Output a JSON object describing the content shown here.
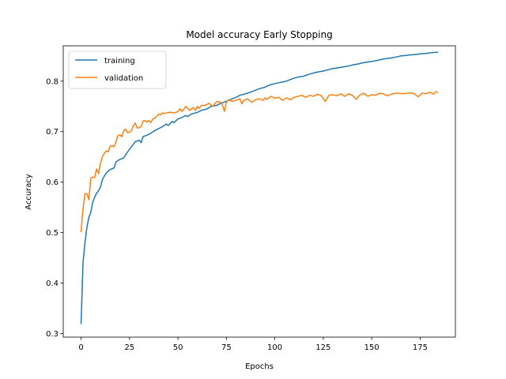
{
  "chart_data": {
    "type": "line",
    "title": "Model accuracy Early Stopping",
    "xlabel": "Epochs",
    "ylabel": "Accuracy",
    "xlim": [
      -9.2,
      193.2
    ],
    "ylim": [
      0.293,
      0.87
    ],
    "xticks": [
      0,
      25,
      50,
      75,
      100,
      125,
      150,
      175
    ],
    "yticks": [
      0.3,
      0.4,
      0.5,
      0.6,
      0.7,
      0.8
    ],
    "grid": false,
    "legend_position": "upper left",
    "series": [
      {
        "name": "training",
        "color": "#1f77b4",
        "points": [
          [
            0,
            0.32
          ],
          [
            1,
            0.44
          ],
          [
            2,
            0.48
          ],
          [
            3,
            0.51
          ],
          [
            4,
            0.53
          ],
          [
            5,
            0.54
          ],
          [
            6,
            0.56
          ],
          [
            7,
            0.57
          ],
          [
            8,
            0.578
          ],
          [
            9,
            0.583
          ],
          [
            10,
            0.59
          ],
          [
            11,
            0.605
          ],
          [
            12,
            0.612
          ],
          [
            13,
            0.618
          ],
          [
            14,
            0.622
          ],
          [
            15,
            0.625
          ],
          [
            17,
            0.628
          ],
          [
            18,
            0.64
          ],
          [
            20,
            0.645
          ],
          [
            22,
            0.648
          ],
          [
            24,
            0.66
          ],
          [
            25,
            0.665
          ],
          [
            27,
            0.675
          ],
          [
            28,
            0.68
          ],
          [
            30,
            0.683
          ],
          [
            31,
            0.678
          ],
          [
            32,
            0.69
          ],
          [
            34,
            0.693
          ],
          [
            36,
            0.697
          ],
          [
            38,
            0.702
          ],
          [
            40,
            0.706
          ],
          [
            42,
            0.71
          ],
          [
            44,
            0.715
          ],
          [
            45,
            0.712
          ],
          [
            47,
            0.72
          ],
          [
            48,
            0.718
          ],
          [
            50,
            0.725
          ],
          [
            52,
            0.728
          ],
          [
            54,
            0.732
          ],
          [
            55,
            0.73
          ],
          [
            57,
            0.735
          ],
          [
            60,
            0.738
          ],
          [
            62,
            0.742
          ],
          [
            65,
            0.745
          ],
          [
            67,
            0.75
          ],
          [
            70,
            0.752
          ],
          [
            72,
            0.756
          ],
          [
            75,
            0.76
          ],
          [
            78,
            0.765
          ],
          [
            80,
            0.768
          ],
          [
            82,
            0.772
          ],
          [
            85,
            0.775
          ],
          [
            88,
            0.779
          ],
          [
            90,
            0.782
          ],
          [
            92,
            0.785
          ],
          [
            95,
            0.788
          ],
          [
            97,
            0.792
          ],
          [
            100,
            0.795
          ],
          [
            102,
            0.797
          ],
          [
            105,
            0.799
          ],
          [
            108,
            0.803
          ],
          [
            110,
            0.806
          ],
          [
            112,
            0.808
          ],
          [
            115,
            0.81
          ],
          [
            118,
            0.814
          ],
          [
            120,
            0.816
          ],
          [
            122,
            0.818
          ],
          [
            125,
            0.82
          ],
          [
            128,
            0.823
          ],
          [
            130,
            0.825
          ],
          [
            132,
            0.826
          ],
          [
            135,
            0.828
          ],
          [
            138,
            0.83
          ],
          [
            140,
            0.832
          ],
          [
            143,
            0.834
          ],
          [
            145,
            0.836
          ],
          [
            148,
            0.838
          ],
          [
            150,
            0.839
          ],
          [
            153,
            0.841
          ],
          [
            155,
            0.843
          ],
          [
            158,
            0.845
          ],
          [
            160,
            0.846
          ],
          [
            163,
            0.848
          ],
          [
            165,
            0.85
          ],
          [
            168,
            0.851
          ],
          [
            170,
            0.852
          ],
          [
            173,
            0.853
          ],
          [
            175,
            0.854
          ],
          [
            178,
            0.855
          ],
          [
            180,
            0.856
          ],
          [
            183,
            0.857
          ],
          [
            184,
            0.857
          ]
        ]
      },
      {
        "name": "validation",
        "color": "#ff7f0e",
        "points": [
          [
            0,
            0.502
          ],
          [
            1,
            0.547
          ],
          [
            2,
            0.577
          ],
          [
            3,
            0.577
          ],
          [
            4,
            0.565
          ],
          [
            5,
            0.607
          ],
          [
            6,
            0.61
          ],
          [
            7,
            0.609
          ],
          [
            8,
            0.626
          ],
          [
            9,
            0.617
          ],
          [
            10,
            0.637
          ],
          [
            11,
            0.65
          ],
          [
            12,
            0.657
          ],
          [
            13,
            0.662
          ],
          [
            14,
            0.66
          ],
          [
            15,
            0.671
          ],
          [
            16,
            0.672
          ],
          [
            17,
            0.67
          ],
          [
            18,
            0.68
          ],
          [
            19,
            0.692
          ],
          [
            20,
            0.694
          ],
          [
            21,
            0.69
          ],
          [
            22,
            0.702
          ],
          [
            23,
            0.705
          ],
          [
            24,
            0.698
          ],
          [
            25,
            0.699
          ],
          [
            26,
            0.702
          ],
          [
            27,
            0.712
          ],
          [
            28,
            0.717
          ],
          [
            29,
            0.707
          ],
          [
            30,
            0.708
          ],
          [
            31,
            0.71
          ],
          [
            32,
            0.721
          ],
          [
            33,
            0.722
          ],
          [
            34,
            0.719
          ],
          [
            35,
            0.722
          ],
          [
            36,
            0.718
          ],
          [
            37,
            0.725
          ],
          [
            38,
            0.727
          ],
          [
            39,
            0.73
          ],
          [
            40,
            0.735
          ],
          [
            41,
            0.733
          ],
          [
            42,
            0.737
          ],
          [
            43,
            0.736
          ],
          [
            45,
            0.738
          ],
          [
            47,
            0.738
          ],
          [
            48,
            0.737
          ],
          [
            50,
            0.74
          ],
          [
            51,
            0.745
          ],
          [
            52,
            0.74
          ],
          [
            53,
            0.744
          ],
          [
            54,
            0.75
          ],
          [
            55,
            0.746
          ],
          [
            56,
            0.742
          ],
          [
            58,
            0.748
          ],
          [
            59,
            0.742
          ],
          [
            60,
            0.75
          ],
          [
            61,
            0.746
          ],
          [
            62,
            0.752
          ],
          [
            64,
            0.752
          ],
          [
            66,
            0.756
          ],
          [
            68,
            0.75
          ],
          [
            70,
            0.76
          ],
          [
            72,
            0.758
          ],
          [
            73,
            0.752
          ],
          [
            74,
            0.74
          ],
          [
            75,
            0.758
          ],
          [
            76,
            0.763
          ],
          [
            78,
            0.76
          ],
          [
            80,
            0.762
          ],
          [
            82,
            0.765
          ],
          [
            83,
            0.755
          ],
          [
            84,
            0.762
          ],
          [
            86,
            0.765
          ],
          [
            88,
            0.758
          ],
          [
            90,
            0.763
          ],
          [
            92,
            0.765
          ],
          [
            94,
            0.762
          ],
          [
            95,
            0.767
          ],
          [
            96,
            0.764
          ],
          [
            98,
            0.77
          ],
          [
            100,
            0.766
          ],
          [
            102,
            0.768
          ],
          [
            104,
            0.762
          ],
          [
            106,
            0.767
          ],
          [
            108,
            0.763
          ],
          [
            110,
            0.768
          ],
          [
            112,
            0.77
          ],
          [
            114,
            0.772
          ],
          [
            116,
            0.768
          ],
          [
            118,
            0.772
          ],
          [
            120,
            0.77
          ],
          [
            122,
            0.774
          ],
          [
            124,
            0.771
          ],
          [
            126,
            0.76
          ],
          [
            128,
            0.772
          ],
          [
            130,
            0.773
          ],
          [
            132,
            0.771
          ],
          [
            134,
            0.775
          ],
          [
            136,
            0.77
          ],
          [
            138,
            0.775
          ],
          [
            140,
            0.772
          ],
          [
            142,
            0.764
          ],
          [
            144,
            0.773
          ],
          [
            146,
            0.776
          ],
          [
            148,
            0.77
          ],
          [
            150,
            0.773
          ],
          [
            152,
            0.772
          ],
          [
            154,
            0.776
          ],
          [
            156,
            0.775
          ],
          [
            158,
            0.771
          ],
          [
            160,
            0.774
          ],
          [
            162,
            0.776
          ],
          [
            164,
            0.776
          ],
          [
            166,
            0.775
          ],
          [
            168,
            0.776
          ],
          [
            170,
            0.777
          ],
          [
            172,
            0.775
          ],
          [
            174,
            0.769
          ],
          [
            176,
            0.776
          ],
          [
            178,
            0.775
          ],
          [
            180,
            0.778
          ],
          [
            182,
            0.774
          ],
          [
            183,
            0.779
          ],
          [
            184,
            0.778
          ]
        ]
      }
    ]
  }
}
